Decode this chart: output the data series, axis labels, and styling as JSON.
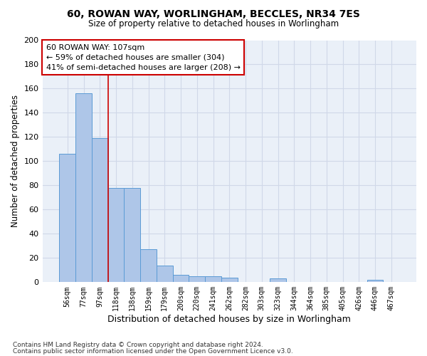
{
  "title_line1": "60, ROWAN WAY, WORLINGHAM, BECCLES, NR34 7ES",
  "title_line2": "Size of property relative to detached houses in Worlingham",
  "xlabel": "Distribution of detached houses by size in Worlingham",
  "ylabel": "Number of detached properties",
  "footnote1": "Contains HM Land Registry data © Crown copyright and database right 2024.",
  "footnote2": "Contains public sector information licensed under the Open Government Licence v3.0.",
  "bar_labels": [
    "56sqm",
    "77sqm",
    "97sqm",
    "118sqm",
    "138sqm",
    "159sqm",
    "179sqm",
    "200sqm",
    "220sqm",
    "241sqm",
    "262sqm",
    "282sqm",
    "303sqm",
    "323sqm",
    "344sqm",
    "364sqm",
    "385sqm",
    "405sqm",
    "426sqm",
    "446sqm",
    "467sqm"
  ],
  "bar_values": [
    106,
    156,
    119,
    78,
    78,
    27,
    14,
    6,
    5,
    5,
    4,
    0,
    0,
    3,
    0,
    0,
    0,
    0,
    0,
    2,
    0
  ],
  "bar_color": "#aec6e8",
  "bar_edge_color": "#5b9bd5",
  "grid_color": "#d0d8e8",
  "background_color": "#eaf0f8",
  "vline_x": 2.5,
  "vline_color": "#cc0000",
  "annotation_line1": "60 ROWAN WAY: 107sqm",
  "annotation_line2": "← 59% of detached houses are smaller (304)",
  "annotation_line3": "41% of semi-detached houses are larger (208) →",
  "annotation_box_color": "#cc0000",
  "annotation_box_facecolor": "white",
  "ylim": [
    0,
    200
  ],
  "yticks": [
    0,
    20,
    40,
    60,
    80,
    100,
    120,
    140,
    160,
    180,
    200
  ]
}
